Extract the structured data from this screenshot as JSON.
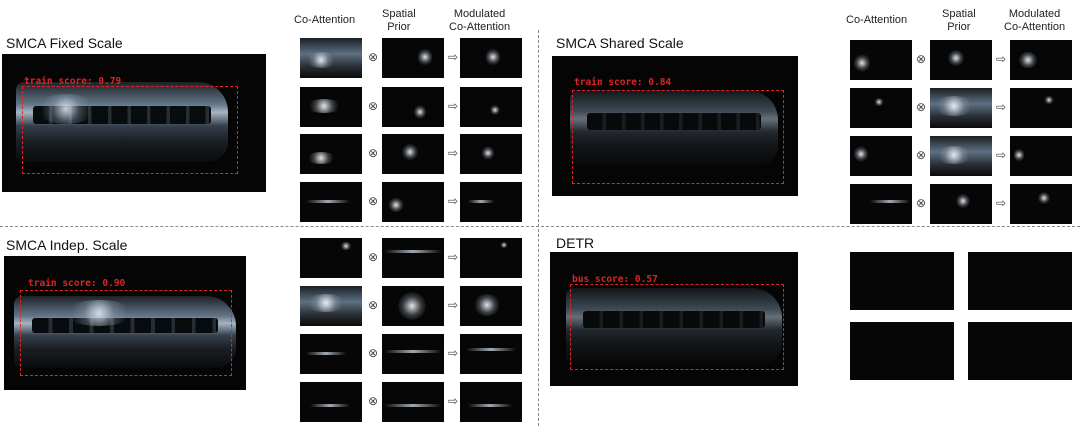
{
  "headers": {
    "co_attention": "Co-Attention",
    "spatial_prior": "Spatial\nPrior",
    "spatial_prior_l1": "Spatial",
    "spatial_prior_l2": "Prior",
    "modulated_l1": "Modulated",
    "modulated_l2": "Co-Attention"
  },
  "operators": {
    "multiply": "⊗",
    "arrow": "⇨"
  },
  "panels": {
    "fixed": {
      "title": "SMCA Fixed Scale",
      "score": "train score: 0.79"
    },
    "shared": {
      "title": "SMCA Shared Scale",
      "score": "train score: 0.84"
    },
    "indep": {
      "title": "SMCA Indep. Scale",
      "score": "train score: 0.90"
    },
    "detr": {
      "title": "DETR",
      "score": "bus score: 0.57"
    }
  },
  "colors": {
    "box": "#e02424",
    "divider": "#8a8a8a",
    "image_bg": "#050505"
  }
}
